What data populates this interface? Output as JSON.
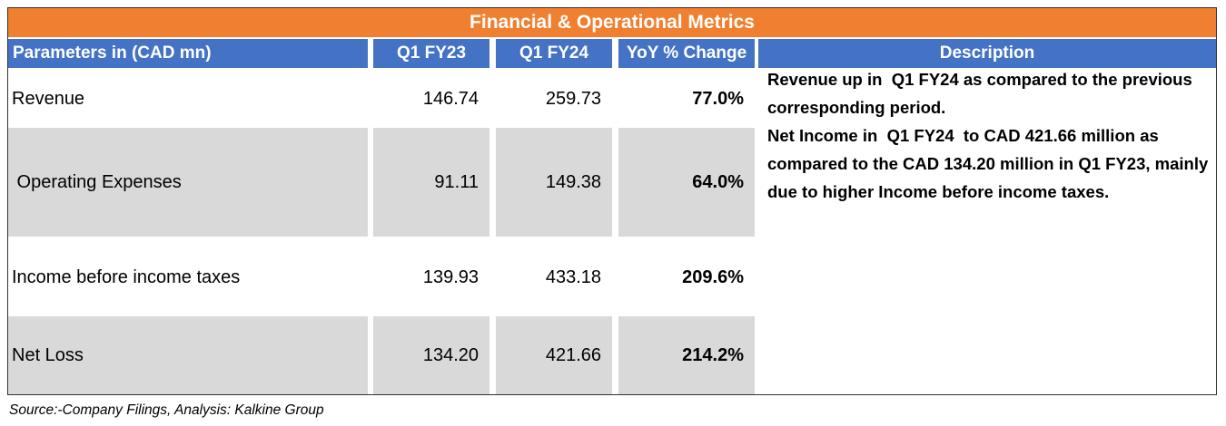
{
  "title": "Financial & Operational Metrics",
  "headers": {
    "parameters": "Parameters in (CAD mn)",
    "q1fy23": "Q1 FY23",
    "q1fy24": "Q1 FY24",
    "yoy": "YoY % Change",
    "description": "Description"
  },
  "rows": [
    {
      "label": "Revenue",
      "q1fy23": "146.74",
      "q1fy24": "259.73",
      "yoy": "77.0%"
    },
    {
      "label": " Operating Expenses",
      "q1fy23": "91.11",
      "q1fy24": "149.38",
      "yoy": "64.0%"
    },
    {
      "label": "Income before income taxes",
      "q1fy23": "139.93",
      "q1fy24": "433.18",
      "yoy": "209.6%"
    },
    {
      "label": "Net Loss",
      "q1fy23": "134.20",
      "q1fy24": "421.66",
      "yoy": "214.2%"
    }
  ],
  "description": {
    "para1": "Revenue up in  Q1 FY24 as compared to the previous corresponding period.",
    "para2": "Net Income in  Q1 FY24  to CAD 421.66 million as compared to the CAD 134.20 million in Q1 FY23, mainly due to higher Income before income taxes."
  },
  "source": "Source:-Company Filings, Analysis: Kalkine Group",
  "colors": {
    "title_bg": "#f07f2f",
    "header_bg": "#4472c4",
    "shade": "#d9d9d9"
  }
}
